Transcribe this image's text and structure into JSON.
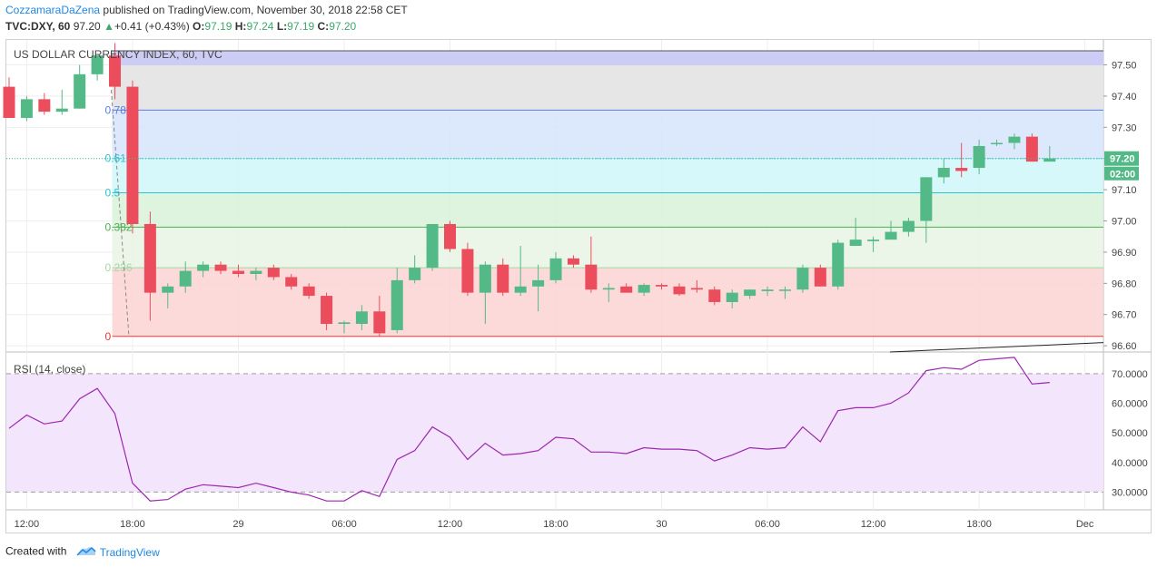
{
  "header": {
    "author": "CozzamaraDaZena",
    "published": "published on TradingView.com, November 30, 2018 22:58 CET",
    "symbol": "TVC:DXY, 60",
    "last": "97.20",
    "change": "+0.41 (+0.43%)",
    "o_label": "O:",
    "o": "97.19",
    "h_label": "H:",
    "h": "97.24",
    "l_label": "L:",
    "l": "97.19",
    "c_label": "C:",
    "c": "97.20"
  },
  "footer": {
    "created_with": "Created with",
    "brand": "TradingView"
  },
  "colors": {
    "up": "#53b987",
    "down": "#eb4d5c",
    "rsi": "#9c27b0",
    "fib_line_07": "#5b7fe0",
    "fib_line_05": "#26c6da",
    "fib_line_0382": "#4caf50",
    "fib_line_0236": "#e53935"
  },
  "chart_data": [
    {
      "type": "candlestick",
      "title": "US DOLLAR CURRENCY INDEX, 60, TVC",
      "ylim": [
        96.58,
        97.58
      ],
      "yticks": [
        "97.50",
        "97.40",
        "97.30",
        "97.20",
        "97.10",
        "97.00",
        "96.90",
        "96.80",
        "96.70",
        "96.60"
      ],
      "xticks": [
        "12:00",
        "18:00",
        "29",
        "06:00",
        "12:00",
        "18:00",
        "30",
        "06:00",
        "12:00",
        "18:00",
        "Dec"
      ],
      "last_price_label": "97.20",
      "countdown_label": "02:00",
      "candles": [
        {
          "o": 97.43,
          "h": 97.46,
          "l": 97.33,
          "c": 97.33
        },
        {
          "o": 97.33,
          "h": 97.4,
          "l": 97.32,
          "c": 97.39
        },
        {
          "o": 97.39,
          "h": 97.41,
          "l": 97.34,
          "c": 97.35
        },
        {
          "o": 97.35,
          "h": 97.42,
          "l": 97.34,
          "c": 97.36
        },
        {
          "o": 97.36,
          "h": 97.5,
          "l": 97.36,
          "c": 97.47
        },
        {
          "o": 97.47,
          "h": 97.53,
          "l": 97.45,
          "c": 97.53
        },
        {
          "o": 97.53,
          "h": 97.57,
          "l": 97.39,
          "c": 97.43
        },
        {
          "o": 97.43,
          "h": 97.45,
          "l": 96.96,
          "c": 96.99
        },
        {
          "o": 96.99,
          "h": 97.03,
          "l": 96.68,
          "c": 96.77
        },
        {
          "o": 96.77,
          "h": 96.8,
          "l": 96.72,
          "c": 96.79
        },
        {
          "o": 96.79,
          "h": 96.87,
          "l": 96.77,
          "c": 96.84
        },
        {
          "o": 96.84,
          "h": 96.87,
          "l": 96.82,
          "c": 96.86
        },
        {
          "o": 96.86,
          "h": 96.87,
          "l": 96.83,
          "c": 96.84
        },
        {
          "o": 96.84,
          "h": 96.86,
          "l": 96.82,
          "c": 96.83
        },
        {
          "o": 96.83,
          "h": 96.85,
          "l": 96.81,
          "c": 96.84
        },
        {
          "o": 96.85,
          "h": 96.86,
          "l": 96.81,
          "c": 96.82
        },
        {
          "o": 96.82,
          "h": 96.83,
          "l": 96.78,
          "c": 96.79
        },
        {
          "o": 96.79,
          "h": 96.8,
          "l": 96.75,
          "c": 96.76
        },
        {
          "o": 96.76,
          "h": 96.77,
          "l": 96.65,
          "c": 96.67
        },
        {
          "o": 96.67,
          "h": 96.68,
          "l": 96.64,
          "c": 96.675
        },
        {
          "o": 96.67,
          "h": 96.73,
          "l": 96.65,
          "c": 96.71
        },
        {
          "o": 96.71,
          "h": 96.76,
          "l": 96.63,
          "c": 96.64
        },
        {
          "o": 96.65,
          "h": 96.85,
          "l": 96.64,
          "c": 96.81
        },
        {
          "o": 96.81,
          "h": 96.89,
          "l": 96.8,
          "c": 96.85
        },
        {
          "o": 96.85,
          "h": 96.98,
          "l": 96.84,
          "c": 96.99
        },
        {
          "o": 96.99,
          "h": 97.0,
          "l": 96.9,
          "c": 96.91
        },
        {
          "o": 96.91,
          "h": 96.93,
          "l": 96.76,
          "c": 96.77
        },
        {
          "o": 96.77,
          "h": 96.87,
          "l": 96.67,
          "c": 96.86
        },
        {
          "o": 96.86,
          "h": 96.88,
          "l": 96.76,
          "c": 96.77
        },
        {
          "o": 96.77,
          "h": 96.92,
          "l": 96.76,
          "c": 96.79
        },
        {
          "o": 96.79,
          "h": 96.86,
          "l": 96.71,
          "c": 96.81
        },
        {
          "o": 96.81,
          "h": 96.9,
          "l": 96.8,
          "c": 96.88
        },
        {
          "o": 96.88,
          "h": 96.89,
          "l": 96.85,
          "c": 96.86
        },
        {
          "o": 96.86,
          "h": 96.95,
          "l": 96.77,
          "c": 96.78
        },
        {
          "o": 96.78,
          "h": 96.8,
          "l": 96.74,
          "c": 96.785
        },
        {
          "o": 96.79,
          "h": 96.8,
          "l": 96.77,
          "c": 96.77
        },
        {
          "o": 96.77,
          "h": 96.8,
          "l": 96.76,
          "c": 96.795
        },
        {
          "o": 96.795,
          "h": 96.8,
          "l": 96.78,
          "c": 96.79
        },
        {
          "o": 96.79,
          "h": 96.8,
          "l": 96.76,
          "c": 96.765
        },
        {
          "o": 96.785,
          "h": 96.81,
          "l": 96.77,
          "c": 96.78
        },
        {
          "o": 96.78,
          "h": 96.79,
          "l": 96.73,
          "c": 96.74
        },
        {
          "o": 96.74,
          "h": 96.78,
          "l": 96.72,
          "c": 96.77
        },
        {
          "o": 96.76,
          "h": 96.78,
          "l": 96.75,
          "c": 96.78
        },
        {
          "o": 96.775,
          "h": 96.79,
          "l": 96.76,
          "c": 96.78
        },
        {
          "o": 96.78,
          "h": 96.79,
          "l": 96.75,
          "c": 96.78
        },
        {
          "o": 96.78,
          "h": 96.86,
          "l": 96.77,
          "c": 96.85
        },
        {
          "o": 96.85,
          "h": 96.86,
          "l": 96.79,
          "c": 96.79
        },
        {
          "o": 96.79,
          "h": 96.94,
          "l": 96.78,
          "c": 96.93
        },
        {
          "o": 96.92,
          "h": 97.01,
          "l": 96.92,
          "c": 96.94
        },
        {
          "o": 96.935,
          "h": 96.95,
          "l": 96.9,
          "c": 96.94
        },
        {
          "o": 96.94,
          "h": 97.0,
          "l": 96.94,
          "c": 96.965
        },
        {
          "o": 96.965,
          "h": 97.01,
          "l": 96.95,
          "c": 97.0
        },
        {
          "o": 97.0,
          "h": 97.14,
          "l": 96.93,
          "c": 97.14
        },
        {
          "o": 97.14,
          "h": 97.2,
          "l": 97.12,
          "c": 97.17
        },
        {
          "o": 97.17,
          "h": 97.25,
          "l": 97.14,
          "c": 97.16
        },
        {
          "o": 97.17,
          "h": 97.26,
          "l": 97.15,
          "c": 97.24
        },
        {
          "o": 97.25,
          "h": 97.26,
          "l": 97.24,
          "c": 97.25
        },
        {
          "o": 97.25,
          "h": 97.28,
          "l": 97.23,
          "c": 97.27
        },
        {
          "o": 97.27,
          "h": 97.28,
          "l": 97.19,
          "c": 97.19
        },
        {
          "o": 97.19,
          "h": 97.24,
          "l": 97.19,
          "c": 97.2
        }
      ],
      "fibonacci": [
        {
          "label": "0.786",
          "value": 97.355
        },
        {
          "label": "0.618",
          "value": 97.2
        },
        {
          "label": "0.5",
          "value": 97.09
        },
        {
          "label": "0.382",
          "value": 96.98
        },
        {
          "label": "0.236",
          "value": 96.85
        },
        {
          "label": "0",
          "value": 96.63
        }
      ],
      "fib_top": 97.545,
      "trend_line": {
        "from": 96.58,
        "to": 96.61
      }
    },
    {
      "type": "line",
      "title": "RSI (14, close)",
      "ylim": [
        24,
        77
      ],
      "yticks": [
        "70.0000",
        "60.0000",
        "50.0000",
        "40.0000",
        "30.0000"
      ],
      "bands": [
        70,
        30
      ],
      "series": [
        {
          "values": [
            51.5,
            56,
            53,
            54,
            61.5,
            65,
            56.5,
            33,
            27,
            27.5,
            31,
            32.5,
            32,
            31.5,
            33,
            31.5,
            30,
            29,
            27,
            27,
            30.5,
            28.5,
            41,
            44,
            52,
            48.5,
            41,
            46.5,
            42.5,
            43,
            44,
            48.5,
            48,
            43.5,
            43.5,
            43,
            45,
            44.5,
            44.5,
            44,
            40.5,
            42.5,
            45,
            44.5,
            45,
            52,
            47,
            57.5,
            58.5,
            58.5,
            60,
            63.5,
            71,
            72,
            71.5,
            74.5,
            75,
            75.5,
            66.5,
            67
          ]
        }
      ]
    }
  ]
}
